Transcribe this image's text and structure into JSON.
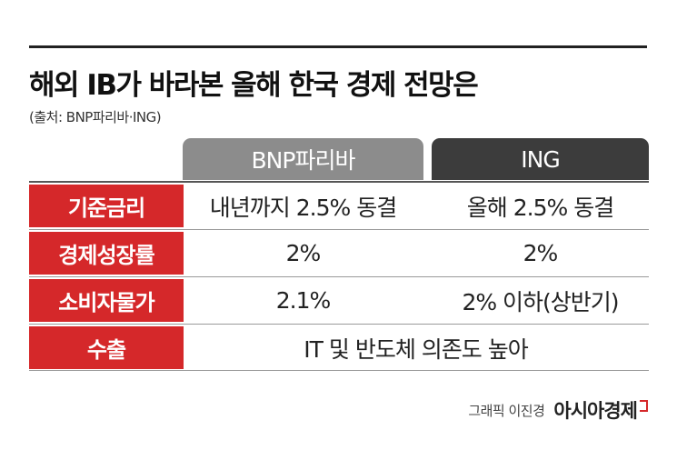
{
  "title": "해외 IB가 바라본 올해 한국 경제 전망은",
  "source": "(출처: BNP파리바·ING)",
  "columns": [
    "BNP파리바",
    "ING"
  ],
  "rows": [
    {
      "label": "기준금리",
      "bnp": "내년까지 2.5% 동결",
      "ing": "올해 2.5% 동결"
    },
    {
      "label": "경제성장률",
      "bnp": "2%",
      "ing": "2%"
    },
    {
      "label": "소비자물가",
      "bnp": "2.1%",
      "ing": "2% 이하(상반기)"
    },
    {
      "label": "수출",
      "combined": "IT 및 반도체 의존도 높아"
    }
  ],
  "footer": {
    "credit": "그래픽 이진경",
    "brand": "아시아경제"
  },
  "colors": {
    "accent": "#d5282a",
    "bnp_header": "#8c8c8c",
    "ing_header": "#3c3c3c"
  }
}
